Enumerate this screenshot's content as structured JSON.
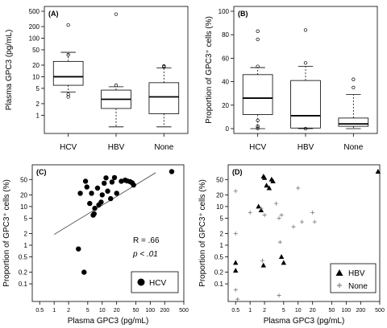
{
  "chart_data": [
    {
      "panel": "(A)",
      "type": "box",
      "ylabel": "Plasma GPC3 (pg/mL)",
      "ytick_labels": [
        "1",
        "2",
        "5",
        "10",
        "20",
        "50",
        "100",
        "200",
        "500"
      ],
      "y_scale": "log",
      "ylim": [
        0.45,
        500
      ],
      "categories": [
        "HCV",
        "HBV",
        "None"
      ],
      "boxes": [
        {
          "whisker_low": 4,
          "q1": 6,
          "median": 10,
          "q3": 25,
          "whisker_high": 43,
          "outliers": [
            3,
            3.5,
            37,
            220
          ]
        },
        {
          "whisker_low": 0.5,
          "q1": 1.5,
          "median": 2.6,
          "q3": 4.5,
          "whisker_high": 5.5,
          "outliers": [
            6,
            420
          ]
        },
        {
          "whisker_low": 0.5,
          "q1": 1.1,
          "median": 3,
          "q3": 7,
          "whisker_high": 17,
          "outliers": [
            18,
            19
          ]
        }
      ]
    },
    {
      "panel": "(B)",
      "type": "box",
      "ylabel": "Proportion of GPC3⁺ cells (%)",
      "ytick_labels": [
        "0",
        "20",
        "40",
        "60",
        "80",
        "100"
      ],
      "ylim": [
        0,
        100
      ],
      "categories": [
        "HCV",
        "HBV",
        "None"
      ],
      "boxes": [
        {
          "whisker_low": 0,
          "q1": 12,
          "median": 26,
          "q3": 46,
          "whisker_high": 52,
          "outliers": [
            0.3,
            2,
            7,
            53,
            76,
            83
          ]
        },
        {
          "whisker_low": 0,
          "q1": 0.5,
          "median": 11,
          "q3": 41,
          "whisker_high": 53,
          "outliers": [
            0,
            56,
            84
          ]
        },
        {
          "whisker_low": 0,
          "q1": 2,
          "median": 4,
          "q3": 9,
          "whisker_high": 29,
          "outliers": [
            35,
            42
          ]
        }
      ]
    },
    {
      "panel": "(C)",
      "type": "scatter",
      "xlabel": "Plasma GPC3 (pg/mL)",
      "ylabel": "Proportion of GPC3⁺ cells (%)",
      "x_scale": "log",
      "y_scale": "log",
      "xlim": [
        0.35,
        500
      ],
      "ylim": [
        0.035,
        120
      ],
      "xtick_labels": [
        "0.5",
        "1",
        "2",
        "5",
        "10",
        "20",
        "50",
        "100",
        "200",
        "500"
      ],
      "ytick_labels": [
        "0.1",
        "0.2",
        "0.5",
        "1",
        "2",
        "5",
        "10",
        "20",
        "50"
      ],
      "annotation_r": "R = .66",
      "annotation_p": "p < .01",
      "legend": "HCV",
      "fit_line": {
        "x": [
          1,
          130
        ],
        "y": [
          1.9,
          75
        ]
      },
      "series": [
        {
          "name": "HCV",
          "marker": "circle",
          "x": [
            3.5,
            4.5,
            4.8,
            5.5,
            6,
            6.5,
            6.8,
            7,
            8,
            8.5,
            9.5,
            10,
            11,
            12,
            13,
            15,
            16,
            18,
            20,
            25,
            30,
            33,
            38,
            42,
            45,
            280,
            3.2,
            4.2
          ],
          "y": [
            22,
            45,
            32,
            12,
            22,
            6,
            6.5,
            9,
            30,
            11,
            13,
            20,
            40,
            55,
            25,
            16,
            43,
            56,
            22,
            45,
            48,
            46,
            44,
            41,
            36,
            80,
            0.8,
            0.2
          ]
        }
      ]
    },
    {
      "panel": "(D)",
      "type": "scatter",
      "xlabel": "Plasma GPC3 (pg/mL)",
      "ylabel": "Proportion of GPC3⁺ cells (%)",
      "x_scale": "log",
      "y_scale": "log",
      "xlim": [
        0.35,
        500
      ],
      "ylim": [
        0.035,
        120
      ],
      "xtick_labels": [
        "0.5",
        "1",
        "2",
        "5",
        "10",
        "20",
        "50",
        "100",
        "200",
        "500"
      ],
      "ytick_labels": [
        "0.1",
        "0.2",
        "0.5",
        "1",
        "2",
        "5",
        "10",
        "20",
        "50"
      ],
      "legend": [
        "HBV",
        "None"
      ],
      "series": [
        {
          "name": "HBV",
          "marker": "triangle",
          "x": [
            0.5,
            0.5,
            1.5,
            1.7,
            1.9,
            2.0,
            2.2,
            2.5,
            2.8,
            3.0,
            1.9,
            4.5,
            5.0,
            460
          ],
          "y": [
            0.35,
            0.22,
            10,
            8,
            60,
            55,
            35,
            30,
            50,
            45,
            0.3,
            0.5,
            0.35,
            80
          ]
        },
        {
          "name": "None",
          "marker": "plus",
          "x": [
            0.5,
            0.5,
            0.5,
            0.55,
            1.0,
            1.8,
            2.0,
            3.5,
            4.0,
            4.2,
            4.5,
            8.0,
            10,
            12,
            20,
            22,
            4.0,
            1.7
          ],
          "y": [
            25,
            0.07,
            2,
            0.04,
            7,
            0.4,
            6,
            12,
            5,
            1.2,
            6,
            3,
            30,
            4,
            7,
            4,
            0.05,
            9
          ]
        }
      ]
    }
  ]
}
